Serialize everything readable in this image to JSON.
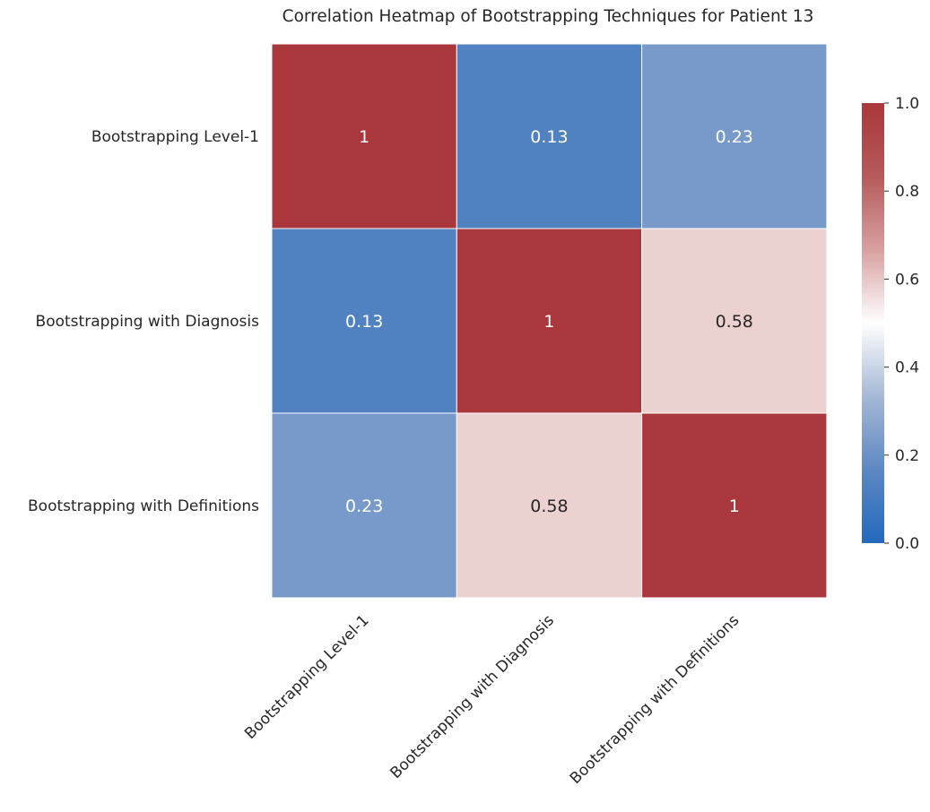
{
  "chart_data": {
    "type": "heatmap",
    "title": "Correlation Heatmap of Bootstrapping Techniques for Patient 13",
    "xlabel": "",
    "ylabel": "",
    "x_categories": [
      "Bootstrapping Level-1",
      "Bootstrapping with Diagnosis",
      "Bootstrapping with Definitions"
    ],
    "y_categories": [
      "Bootstrapping Level-1",
      "Bootstrapping with Diagnosis",
      "Bootstrapping with Definitions"
    ],
    "values": [
      [
        1,
        0.13,
        0.23
      ],
      [
        0.13,
        1,
        0.58
      ],
      [
        0.23,
        0.58,
        1
      ]
    ],
    "annotations": [
      [
        "1",
        "0.13",
        "0.23"
      ],
      [
        "0.13",
        "1",
        "0.58"
      ],
      [
        "0.23",
        "0.58",
        "1"
      ]
    ],
    "colorbar": {
      "range": [
        0,
        1
      ],
      "ticks": [
        "0.0",
        "0.2",
        "0.4",
        "0.6",
        "0.8",
        "1.0"
      ],
      "colormap": "vlag",
      "stops": [
        "#2369bd",
        "#5d88c2",
        "#a5b8d6",
        "#ffffff",
        "#d8a0a0",
        "#b55a5b",
        "#a9373b"
      ]
    },
    "grid": false,
    "cell_border_color": "#ffffff"
  }
}
